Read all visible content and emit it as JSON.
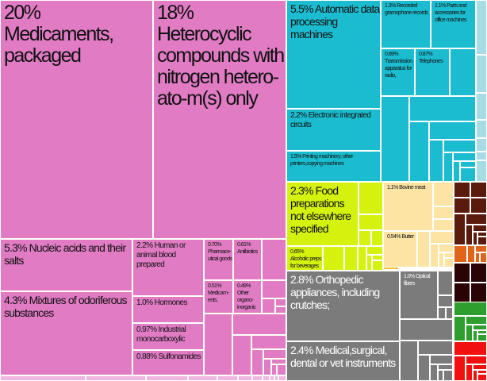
{
  "chart_data": {
    "type": "treemap",
    "title": "",
    "colors": {
      "chemicals": "#e07bc4",
      "chemicals_light": "#f0b6df",
      "machinery": "#1bbccf",
      "machinery_light": "#a6dce6",
      "foodstuffs": "#d4f20e",
      "animal": "#fde4a4",
      "animal_dark": "#fbbf2e",
      "brown": "#5a1a0c",
      "orange": "#e0641a",
      "darkbrown": "#2a0404",
      "instruments": "#7b7b7b",
      "green": "#2e9e2e",
      "red": "#f01010"
    },
    "items": [
      {
        "pct": "20%",
        "name": "Medicaments, packaged",
        "value": 20,
        "group": "chemicals"
      },
      {
        "pct": "18%",
        "name": "Heterocyclic compounds with nitrogen hetero-ato-m(s) only",
        "value": 18,
        "group": "chemicals"
      },
      {
        "pct": "5.3%",
        "name": "Nucleic acids and their salts",
        "value": 5.3,
        "group": "chemicals"
      },
      {
        "pct": "4.3%",
        "name": "Mixtures of odoriferous substances",
        "value": 4.3,
        "group": "chemicals"
      },
      {
        "pct": "2.2%",
        "name": "Human or animal blood prepared",
        "value": 2.2,
        "group": "chemicals"
      },
      {
        "pct": "1.0%",
        "name": "Hormones",
        "value": 1.0,
        "group": "chemicals"
      },
      {
        "pct": "0.97%",
        "name": "Industrial monocarboxylic",
        "value": 0.97,
        "group": "chemicals"
      },
      {
        "pct": "0.88%",
        "name": "Sulfonamides",
        "value": 0.88,
        "group": "chemicals"
      },
      {
        "pct": "0.70%",
        "name": "Pharmace-utical goods",
        "value": 0.7,
        "group": "chemicals"
      },
      {
        "pct": "0.61%",
        "name": "Antibiotics",
        "value": 0.61,
        "group": "chemicals"
      },
      {
        "pct": "0.51%",
        "name": "Medicam-ents,",
        "value": 0.51,
        "group": "chemicals"
      },
      {
        "pct": "0.49%",
        "name": "Other organo-inorganic",
        "value": 0.49,
        "group": "chemicals"
      },
      {
        "pct": "5.5%",
        "name": "Automatic data processing machines",
        "value": 5.5,
        "group": "machinery"
      },
      {
        "pct": "2.2%",
        "name": "Electronic integrated circuits",
        "value": 2.2,
        "group": "machinery"
      },
      {
        "pct": "1.5%",
        "name": "Printing machinery; other printers,copying machines",
        "value": 1.5,
        "group": "machinery"
      },
      {
        "pct": "1.3%",
        "name": "Recorded gramophone records",
        "value": 1.3,
        "group": "machinery"
      },
      {
        "pct": "1.1%",
        "name": "Parts and accessories for office machines",
        "value": 1.1,
        "group": "machinery"
      },
      {
        "pct": "0.89%",
        "name": "Transmission apparatus for radio,",
        "value": 0.89,
        "group": "machinery"
      },
      {
        "pct": "0.87%",
        "name": "Telephones",
        "value": 0.87,
        "group": "machinery"
      },
      {
        "pct": "2.3%",
        "name": "Food preparations not elsewhere specified",
        "value": 2.3,
        "group": "foodstuffs"
      },
      {
        "pct": "0.65%",
        "name": "Alcoholic preps for beverages",
        "value": 0.65,
        "group": "foodstuffs"
      },
      {
        "pct": "1.1%",
        "name": "Bovine meat",
        "value": 1.1,
        "group": "animal"
      },
      {
        "pct": "0.54%",
        "name": "Butter",
        "value": 0.54,
        "group": "animal"
      },
      {
        "pct": "2.8%",
        "name": "Orthopedic appliances, including crutches;",
        "value": 2.8,
        "group": "instruments"
      },
      {
        "pct": "2.4%",
        "name": "Medical,surgical, dental or vet instruments",
        "value": 2.4,
        "group": "instruments"
      },
      {
        "pct": "1.0%",
        "name": "Optical fibers",
        "value": 1.0,
        "group": "instruments"
      }
    ]
  }
}
